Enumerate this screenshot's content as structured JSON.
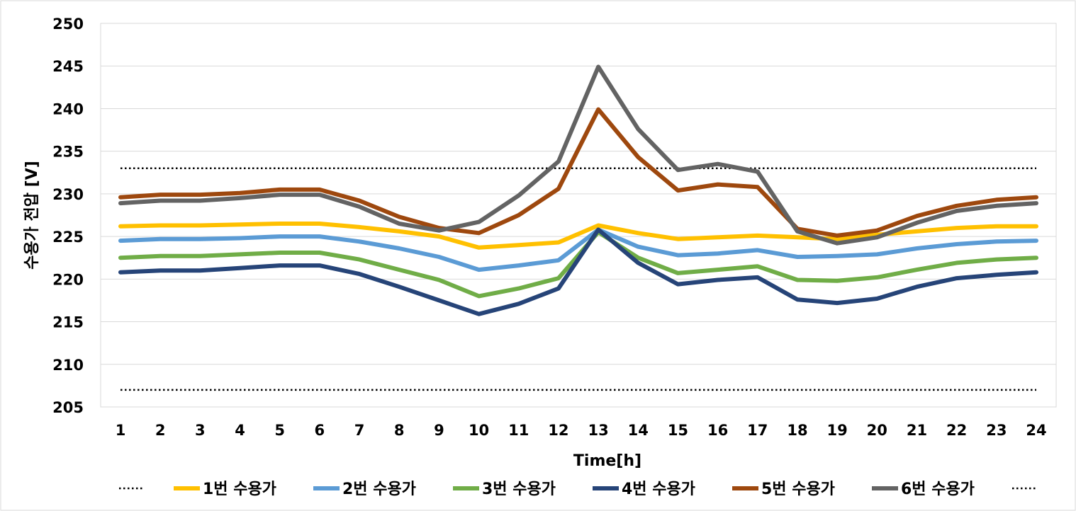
{
  "chart_data": {
    "type": "line",
    "xlabel": "Time[h]",
    "ylabel": "수용가 전압 [V]",
    "ylim": [
      205,
      250
    ],
    "yticks": [
      205,
      210,
      215,
      220,
      225,
      230,
      235,
      240,
      245,
      250
    ],
    "x": [
      1,
      2,
      3,
      4,
      5,
      6,
      7,
      8,
      9,
      10,
      11,
      12,
      13,
      14,
      15,
      16,
      17,
      18,
      19,
      20,
      21,
      22,
      23,
      24
    ],
    "grid": "horizontal",
    "legend": "bottom",
    "reference_lines": [
      233,
      207
    ],
    "reference_color": "#000000",
    "series": [
      {
        "name": "1번 수용가",
        "color": "#FFC000",
        "values": [
          226.2,
          226.3,
          226.3,
          226.4,
          226.5,
          226.5,
          226.1,
          225.6,
          225.0,
          223.7,
          224.0,
          224.3,
          226.3,
          225.4,
          224.7,
          224.9,
          225.1,
          224.9,
          224.7,
          225.2,
          225.6,
          226.0,
          226.2,
          226.2
        ]
      },
      {
        "name": "2번 수용가",
        "color": "#5B9BD5",
        "values": [
          224.5,
          224.7,
          224.7,
          224.8,
          225.0,
          225.0,
          224.4,
          223.6,
          222.6,
          221.1,
          221.6,
          222.2,
          225.8,
          223.8,
          222.8,
          223.0,
          223.4,
          222.6,
          222.7,
          222.9,
          223.6,
          224.1,
          224.4,
          224.5
        ]
      },
      {
        "name": "3번 수용가",
        "color": "#70AD47",
        "values": [
          222.5,
          222.7,
          222.7,
          222.9,
          223.1,
          223.1,
          222.3,
          221.1,
          219.9,
          218.0,
          218.9,
          220.1,
          225.5,
          222.5,
          220.7,
          221.1,
          221.5,
          219.9,
          219.8,
          220.2,
          221.1,
          221.9,
          222.3,
          222.5
        ]
      },
      {
        "name": "4번 수용가",
        "color": "#264478",
        "values": [
          220.8,
          221.0,
          221.0,
          221.3,
          221.6,
          221.6,
          220.6,
          219.1,
          217.5,
          215.9,
          217.1,
          218.9,
          225.8,
          221.9,
          219.4,
          219.9,
          220.2,
          217.6,
          217.2,
          217.7,
          219.1,
          220.1,
          220.5,
          220.8
        ]
      },
      {
        "name": "5번 수용가",
        "color": "#9E480E",
        "values": [
          229.6,
          229.9,
          229.9,
          230.1,
          230.5,
          230.5,
          229.2,
          227.3,
          226.0,
          225.4,
          227.5,
          230.6,
          239.9,
          234.3,
          230.4,
          231.1,
          230.8,
          225.9,
          225.1,
          225.7,
          227.4,
          228.6,
          229.3,
          229.6
        ]
      },
      {
        "name": "6번 수용가",
        "color": "#636363",
        "values": [
          228.9,
          229.2,
          229.2,
          229.5,
          229.9,
          229.9,
          228.5,
          226.5,
          225.7,
          226.7,
          229.8,
          233.8,
          244.9,
          237.6,
          232.8,
          233.5,
          232.6,
          225.6,
          224.2,
          224.9,
          226.6,
          228.0,
          228.6,
          228.9
        ]
      }
    ]
  }
}
